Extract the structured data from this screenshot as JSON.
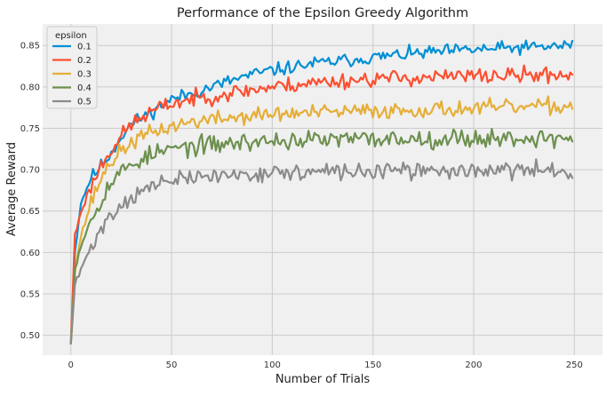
{
  "chart_data": {
    "type": "line",
    "title": "Performance of the Epsilon Greedy Algorithm",
    "xlabel": "Number of Trials",
    "ylabel": "Average Reward",
    "xlim": [
      -14,
      264
    ],
    "ylim": [
      0.476,
      0.876
    ],
    "xticks": [
      0,
      50,
      100,
      150,
      200,
      250
    ],
    "yticks": [
      0.5,
      0.55,
      0.6,
      0.65,
      0.7,
      0.75,
      0.8,
      0.85
    ],
    "grid": true,
    "background": "#f0f0f0",
    "legend": {
      "title": "epsilon",
      "placement": "top-left"
    },
    "x": {
      "start": 0,
      "end": 249,
      "step": 1
    },
    "series": [
      {
        "name": "0.1",
        "color": "#008fd5",
        "anchors": [
          [
            0,
            0.49
          ],
          [
            2,
            0.6
          ],
          [
            5,
            0.66
          ],
          [
            10,
            0.69
          ],
          [
            15,
            0.705
          ],
          [
            20,
            0.72
          ],
          [
            25,
            0.74
          ],
          [
            30,
            0.755
          ],
          [
            40,
            0.77
          ],
          [
            50,
            0.785
          ],
          [
            60,
            0.792
          ],
          [
            70,
            0.8
          ],
          [
            80,
            0.808
          ],
          [
            90,
            0.815
          ],
          [
            100,
            0.82
          ],
          [
            120,
            0.828
          ],
          [
            140,
            0.833
          ],
          [
            160,
            0.838
          ],
          [
            180,
            0.842
          ],
          [
            200,
            0.845
          ],
          [
            220,
            0.847
          ],
          [
            249,
            0.85
          ]
        ],
        "noise": 0.005,
        "noise_after": 10,
        "seed": 11
      },
      {
        "name": "0.2",
        "color": "#fc4f30",
        "anchors": [
          [
            0,
            0.49
          ],
          [
            2,
            0.62
          ],
          [
            5,
            0.65
          ],
          [
            10,
            0.68
          ],
          [
            15,
            0.705
          ],
          [
            20,
            0.725
          ],
          [
            25,
            0.74
          ],
          [
            30,
            0.755
          ],
          [
            40,
            0.77
          ],
          [
            50,
            0.78
          ],
          [
            60,
            0.785
          ],
          [
            80,
            0.793
          ],
          [
            100,
            0.8
          ],
          [
            120,
            0.805
          ],
          [
            150,
            0.81
          ],
          [
            200,
            0.813
          ],
          [
            249,
            0.815
          ]
        ],
        "noise": 0.006,
        "noise_after": 10,
        "seed": 23
      },
      {
        "name": "0.3",
        "color": "#e5ae38",
        "anchors": [
          [
            0,
            0.49
          ],
          [
            2,
            0.58
          ],
          [
            5,
            0.62
          ],
          [
            10,
            0.66
          ],
          [
            15,
            0.69
          ],
          [
            20,
            0.71
          ],
          [
            25,
            0.722
          ],
          [
            30,
            0.733
          ],
          [
            40,
            0.745
          ],
          [
            50,
            0.752
          ],
          [
            60,
            0.758
          ],
          [
            80,
            0.763
          ],
          [
            100,
            0.767
          ],
          [
            150,
            0.771
          ],
          [
            200,
            0.774
          ],
          [
            249,
            0.777
          ]
        ],
        "noise": 0.006,
        "noise_after": 10,
        "seed": 37
      },
      {
        "name": "0.4",
        "color": "#6d904f",
        "anchors": [
          [
            0,
            0.49
          ],
          [
            2,
            0.58
          ],
          [
            5,
            0.61
          ],
          [
            10,
            0.64
          ],
          [
            15,
            0.665
          ],
          [
            20,
            0.685
          ],
          [
            25,
            0.697
          ],
          [
            30,
            0.707
          ],
          [
            40,
            0.718
          ],
          [
            50,
            0.725
          ],
          [
            60,
            0.728
          ],
          [
            80,
            0.732
          ],
          [
            100,
            0.735
          ],
          [
            150,
            0.737
          ],
          [
            200,
            0.738
          ],
          [
            249,
            0.738
          ]
        ],
        "noise": 0.007,
        "noise_after": 10,
        "seed": 53
      },
      {
        "name": "0.5",
        "color": "#8b8b8b",
        "anchors": [
          [
            0,
            0.49
          ],
          [
            2,
            0.56
          ],
          [
            5,
            0.58
          ],
          [
            10,
            0.605
          ],
          [
            15,
            0.63
          ],
          [
            20,
            0.645
          ],
          [
            25,
            0.657
          ],
          [
            30,
            0.667
          ],
          [
            40,
            0.68
          ],
          [
            50,
            0.687
          ],
          [
            60,
            0.69
          ],
          [
            80,
            0.694
          ],
          [
            100,
            0.696
          ],
          [
            150,
            0.698
          ],
          [
            200,
            0.699
          ],
          [
            249,
            0.699
          ]
        ],
        "noise": 0.006,
        "noise_after": 10,
        "seed": 71
      }
    ]
  }
}
